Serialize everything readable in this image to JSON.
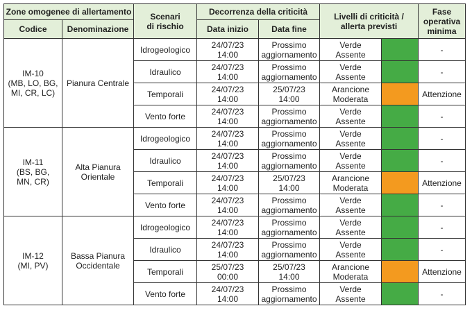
{
  "header": {
    "zone_group": "Zone omogenee di allertamento",
    "codice": "Codice",
    "denominazione": "Denominazione",
    "scenari": "Scenari\ndi rischio",
    "decorrenza": "Decorrenza della criticità",
    "data_inizio": "Data inizio",
    "data_fine": "Data fine",
    "livelli": "Livelli di criticità /\nallerta previsti",
    "fase": "Fase\noperativa\nminima"
  },
  "colors": {
    "verde": "#45ab45",
    "arancione": "#f39a1f",
    "header_bg": "#e3efd9"
  },
  "zones": [
    {
      "codice": "IM-10\n(MB, LO, BG,\nMI, CR, LC)",
      "denominazione": "Pianura Centrale",
      "rows": [
        {
          "scenario": "Idrogeologico",
          "inizio": "24/07/23\n14:00",
          "fine": "Prossimo\naggiornamento",
          "livello": "Verde\nAssente",
          "color": "verde",
          "fase": "-"
        },
        {
          "scenario": "Idraulico",
          "inizio": "24/07/23\n14:00",
          "fine": "Prossimo\naggiornamento",
          "livello": "Verde\nAssente",
          "color": "verde",
          "fase": "-"
        },
        {
          "scenario": "Temporali",
          "inizio": "24/07/23\n14:00",
          "fine": "25/07/23\n14:00",
          "livello": "Arancione\nModerata",
          "color": "arancione",
          "fase": "Attenzione"
        },
        {
          "scenario": "Vento forte",
          "inizio": "24/07/23\n14:00",
          "fine": "Prossimo\naggiornamento",
          "livello": "Verde\nAssente",
          "color": "verde",
          "fase": "-"
        }
      ]
    },
    {
      "codice": "IM-11\n(BS, BG,\nMN, CR)",
      "denominazione": "Alta Pianura\nOrientale",
      "rows": [
        {
          "scenario": "Idrogeologico",
          "inizio": "24/07/23\n14:00",
          "fine": "Prossimo\naggiornamento",
          "livello": "Verde\nAssente",
          "color": "verde",
          "fase": "-"
        },
        {
          "scenario": "Idraulico",
          "inizio": "24/07/23\n14:00",
          "fine": "Prossimo\naggiornamento",
          "livello": "Verde\nAssente",
          "color": "verde",
          "fase": "-"
        },
        {
          "scenario": "Temporali",
          "inizio": "24/07/23\n14:00",
          "fine": "25/07/23\n14:00",
          "livello": "Arancione\nModerata",
          "color": "arancione",
          "fase": "Attenzione"
        },
        {
          "scenario": "Vento forte",
          "inizio": "24/07/23\n14:00",
          "fine": "Prossimo\naggiornamento",
          "livello": "Verde\nAssente",
          "color": "verde",
          "fase": "-"
        }
      ]
    },
    {
      "codice": "IM-12\n(MI, PV)",
      "denominazione": "Bassa Pianura\nOccidentale",
      "rows": [
        {
          "scenario": "Idrogeologico",
          "inizio": "24/07/23\n14:00",
          "fine": "Prossimo\naggiornamento",
          "livello": "Verde\nAssente",
          "color": "verde",
          "fase": "-"
        },
        {
          "scenario": "Idraulico",
          "inizio": "24/07/23\n14:00",
          "fine": "Prossimo\naggiornamento",
          "livello": "Verde\nAssente",
          "color": "verde",
          "fase": "-"
        },
        {
          "scenario": "Temporali",
          "inizio": "25/07/23\n00:00",
          "fine": "25/07/23\n14:00",
          "livello": "Arancione\nModerata",
          "color": "arancione",
          "fase": "Attenzione"
        },
        {
          "scenario": "Vento forte",
          "inizio": "24/07/23\n14:00",
          "fine": "Prossimo\naggiornamento",
          "livello": "Verde\nAssente",
          "color": "verde",
          "fase": "-"
        }
      ]
    }
  ]
}
